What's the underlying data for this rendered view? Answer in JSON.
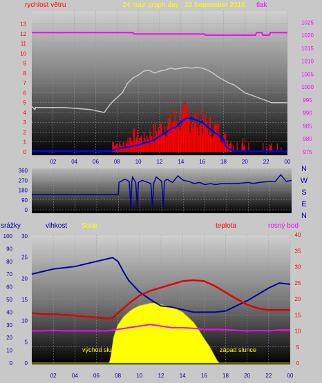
{
  "colors": {
    "background": "#c8c8c8",
    "wind": "#ff0000",
    "gust": "#ff0000",
    "wind_avg": "#0000ff",
    "pressure": "#ff00ff",
    "temperature_line": "#c8c8c8",
    "direction": "#0000a0",
    "humidity": "#0000a0",
    "dewpoint": "#ff00ff",
    "solar": "#ffff00",
    "temp2": "#ff0000"
  },
  "chart_data": [
    {
      "type": "line",
      "title": "24 hour graph day : 10 September 2018",
      "left_axis_label": "rychlost větru",
      "right_axis_label": "tlak",
      "x_ticks": [
        "02",
        "04",
        "06",
        "08",
        "10",
        "12",
        "14",
        "16",
        "18",
        "20",
        "22",
        "00"
      ],
      "y_left_ticks": [
        "0",
        "1",
        "2",
        "3",
        "4",
        "5",
        "6",
        "7",
        "8",
        "9",
        "10",
        "11",
        "12",
        "13"
      ],
      "y_right_ticks": [
        "975",
        "980",
        "985",
        "990",
        "995",
        "1000",
        "1005",
        "1010",
        "1015",
        "1020",
        "1025"
      ],
      "xlim": [
        0,
        24
      ],
      "ylim_left": [
        0,
        13
      ],
      "ylim_right": [
        975,
        1028
      ],
      "grid": true,
      "series": [
        {
          "name": "tlak",
          "axis": "right",
          "x": [
            0,
            9.5,
            9.6,
            16.2,
            16.3,
            21,
            21.1,
            21.6,
            21.7,
            22.3,
            22.4,
            24
          ],
          "values": [
            1021,
            1021,
            1020.5,
            1020.5,
            1020,
            1020,
            1021,
            1021,
            1020,
            1020,
            1021,
            1021
          ]
        },
        {
          "axis": "left",
          "x": [
            0,
            0.3,
            0.35,
            3,
            5.5,
            6.8,
            7.0,
            7.2,
            7.5,
            8,
            8.5,
            9,
            9.5,
            10,
            10.5,
            11,
            11.5,
            12,
            12.5,
            13,
            13.5,
            14,
            14.5,
            15,
            15.5,
            16,
            16.5,
            17,
            17.5,
            18,
            18.5,
            19,
            19.5,
            20,
            21,
            22,
            22.5,
            23,
            24
          ],
          "values": [
            4.6,
            4.3,
            4.5,
            4.5,
            4.3,
            4.0,
            4.3,
            4.6,
            5.0,
            5.5,
            6.0,
            7.0,
            7.5,
            7.8,
            8.2,
            8.3,
            8.0,
            8.2,
            8.3,
            8.5,
            8.4,
            8.5,
            8.6,
            8.5,
            8.6,
            8.5,
            8.3,
            8.0,
            7.6,
            7.3,
            7.0,
            6.8,
            6.4,
            6.0,
            5.6,
            5.2,
            5.0,
            5.0,
            5.0
          ]
        },
        {
          "axis": "left",
          "x": [
            0,
            7.5,
            8,
            9,
            10,
            10.5,
            11,
            11.5,
            12,
            12.5,
            13,
            13.5,
            14,
            14.5,
            15,
            15.5,
            16,
            16.5,
            17,
            17.5,
            18,
            18.2,
            18.5,
            19,
            20,
            21,
            22,
            23,
            24
          ],
          "values": [
            0.1,
            0.1,
            0.3,
            0.5,
            0.7,
            0.9,
            1.0,
            1.2,
            1.6,
            1.9,
            2.3,
            2.5,
            3.0,
            3.4,
            3.4,
            3.2,
            3.0,
            2.5,
            2.1,
            1.7,
            1.3,
            0.6,
            0.3,
            0.1,
            0.05,
            0.05,
            0.05,
            0.05,
            0.05
          ]
        }
      ]
    },
    {
      "type": "line",
      "y_left_ticks": [
        "0",
        "90",
        "180",
        "270",
        "360"
      ],
      "compass_labels": [
        "N",
        "W",
        "S",
        "E",
        "N"
      ],
      "xlim": [
        0,
        24
      ],
      "ylim": [
        0,
        360
      ],
      "grid": true,
      "series": [
        {
          "axis": "left",
          "x": [
            0,
            8,
            8.05,
            8.6,
            9.0,
            9.3,
            9.6,
            10.2,
            11,
            11.5,
            12,
            12.5,
            13,
            13.5,
            14,
            14.5,
            15,
            15.5,
            16,
            16.5,
            17,
            17.5,
            18,
            18.5,
            19,
            20,
            20.5,
            21,
            22,
            22.5,
            23,
            23.5,
            24
          ],
          "values": [
            140,
            140,
            250,
            280,
            260,
            300,
            250,
            270,
            240,
            300,
            260,
            280,
            250,
            310,
            270,
            260,
            240,
            250,
            230,
            240,
            230,
            240,
            240,
            240,
            240,
            250,
            240,
            250,
            260,
            260,
            320,
            260,
            270
          ]
        }
      ]
    },
    {
      "type": "area",
      "labels": {
        "rain": "srážky",
        "humidity": "vlhkost",
        "solar": "Solar",
        "temperature": "teplota",
        "dewpoint": "rosný bod",
        "sunrise": "východ slu...",
        "sunset": "západ slunce"
      },
      "x_ticks": [
        "02",
        "04",
        "06",
        "08",
        "10",
        "12",
        "14",
        "16",
        "18",
        "20",
        "22",
        "00"
      ],
      "y_rain_ticks": [
        "0",
        "10",
        "20",
        "30",
        "40",
        "50",
        "60",
        "70",
        "80",
        "90",
        "100"
      ],
      "y_inner_ticks": [
        "0",
        "5",
        "10",
        "15",
        "20",
        "25",
        "30"
      ],
      "y_right_ticks": [
        "0",
        "5",
        "10",
        "15",
        "20",
        "25",
        "30",
        "35",
        "40"
      ],
      "xlim": [
        0,
        24
      ],
      "ylim_right": [
        0,
        40
      ],
      "grid": true,
      "series": [
        {
          "name": "vlhkost",
          "scale": "rain",
          "x": [
            0,
            1,
            2,
            3,
            4,
            5,
            6,
            7,
            7.5,
            8,
            8.5,
            9,
            10,
            11,
            12,
            13,
            14,
            15,
            16,
            17,
            18,
            19,
            20,
            21,
            22,
            23,
            24
          ],
          "values": [
            70,
            72,
            74,
            75,
            76,
            78,
            80,
            82,
            83,
            80,
            72,
            65,
            56,
            50,
            45,
            44,
            42,
            40,
            40,
            40,
            41,
            45,
            49,
            54,
            59,
            63,
            62
          ]
        },
        {
          "name": "teplota",
          "scale": "right",
          "x": [
            0,
            1,
            2,
            3,
            4,
            5,
            6,
            7,
            7.5,
            8,
            9,
            10,
            11,
            12,
            13,
            14,
            15,
            16,
            17,
            18,
            19,
            20,
            21,
            22,
            23,
            24
          ],
          "values": [
            15.5,
            15.2,
            15.2,
            15,
            14.8,
            14.5,
            14.2,
            13.8,
            14,
            15.5,
            18.5,
            21,
            22.5,
            23.5,
            24.5,
            25.5,
            25.8,
            25.5,
            24,
            22,
            20,
            18.2,
            17,
            16.5,
            16.5,
            16.5
          ]
        },
        {
          "name": "rosný bod",
          "scale": "right",
          "x": [
            0,
            1,
            2,
            3,
            4,
            5,
            6,
            7,
            8,
            9,
            10,
            11,
            12,
            13,
            14,
            15,
            16,
            17,
            18,
            19,
            20,
            21,
            22,
            23,
            24
          ],
          "values": [
            10,
            10,
            10.2,
            10,
            10,
            10,
            10,
            10,
            10.5,
            11,
            11.5,
            12,
            11.5,
            11,
            11,
            10.8,
            10.5,
            10.5,
            10.4,
            10.2,
            10,
            10.1,
            10,
            10.3,
            10.3
          ]
        },
        {
          "name": "Solar",
          "scale": "rain",
          "x": [
            0,
            7.2,
            7.35,
            7.6,
            8,
            8.5,
            9,
            9.5,
            10,
            10.5,
            11,
            11.5,
            12,
            12.5,
            13,
            13.5,
            14,
            14.5,
            15,
            15.5,
            16,
            16.5,
            17,
            17.2,
            17.4,
            24
          ],
          "values": [
            0,
            0,
            5,
            20,
            30,
            36,
            40,
            43,
            45,
            46,
            47,
            47,
            46,
            45,
            44,
            42,
            40,
            36,
            32,
            26,
            19,
            13,
            5,
            2,
            0,
            0
          ]
        }
      ]
    }
  ]
}
